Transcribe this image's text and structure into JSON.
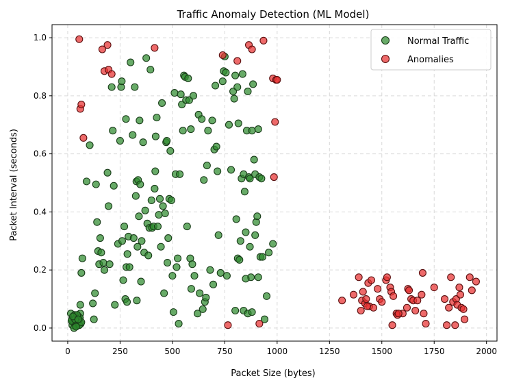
{
  "chart_data": {
    "type": "scatter",
    "title": "Traffic Anomaly Detection (ML Model)",
    "xlabel": "Packet Size (bytes)",
    "ylabel": "Packet Interval (seconds)",
    "xlim": [
      -75,
      2050
    ],
    "ylim": [
      -0.045,
      1.045
    ],
    "x_ticks": [
      0,
      250,
      500,
      750,
      1000,
      1250,
      1500,
      1750,
      2000
    ],
    "y_ticks": [
      0.0,
      0.2,
      0.4,
      0.6,
      0.8,
      1.0
    ],
    "x_tick_labels": [
      "0",
      "250",
      "500",
      "750",
      "1000",
      "1250",
      "1500",
      "1750",
      "2000"
    ],
    "y_tick_labels": [
      "0.0",
      "0.2",
      "0.4",
      "0.6",
      "0.8",
      "1.0"
    ],
    "grid": true,
    "legend_position": "top-right",
    "series": [
      {
        "name": "Normal Traffic",
        "color": "#2e8b2e",
        "edge_color": "#1a3d1a",
        "points": [
          [
            15,
            0.05
          ],
          [
            20,
            0.03
          ],
          [
            25,
            0.02
          ],
          [
            30,
            0.04
          ],
          [
            35,
            0.01
          ],
          [
            40,
            0.03
          ],
          [
            45,
            0.02
          ],
          [
            50,
            0.04
          ],
          [
            55,
            0.03
          ],
          [
            60,
            0.05
          ],
          [
            22,
            0.01
          ],
          [
            28,
            0.035
          ],
          [
            33,
            0.045
          ],
          [
            38,
            0.015
          ],
          [
            42,
            0.025
          ],
          [
            48,
            0.01
          ],
          [
            52,
            0.02
          ],
          [
            58,
            0.035
          ],
          [
            62,
            0.015
          ],
          [
            18,
            0.025
          ],
          [
            30,
            0.0
          ],
          [
            45,
            0.045
          ],
          [
            55,
            0.01
          ],
          [
            35,
            0.03
          ],
          [
            65,
            0.02
          ],
          [
            25,
            0.04
          ],
          [
            40,
            0.005
          ],
          [
            50,
            0.03
          ],
          [
            60,
            0.08
          ],
          [
            65,
            0.19
          ],
          [
            70,
            0.24
          ],
          [
            90,
            0.505
          ],
          [
            105,
            0.63
          ],
          [
            120,
            0.085
          ],
          [
            125,
            0.03
          ],
          [
            130,
            0.12
          ],
          [
            135,
            0.495
          ],
          [
            140,
            0.365
          ],
          [
            145,
            0.265
          ],
          [
            150,
            0.22
          ],
          [
            155,
            0.31
          ],
          [
            160,
            0.26
          ],
          [
            170,
            0.225
          ],
          [
            175,
            0.2
          ],
          [
            190,
            0.535
          ],
          [
            195,
            0.42
          ],
          [
            200,
            0.22
          ],
          [
            210,
            0.83
          ],
          [
            215,
            0.68
          ],
          [
            220,
            0.49
          ],
          [
            225,
            0.08
          ],
          [
            240,
            0.29
          ],
          [
            250,
            0.645
          ],
          [
            255,
            0.83
          ],
          [
            258,
            0.85
          ],
          [
            260,
            0.3
          ],
          [
            265,
            0.165
          ],
          [
            270,
            0.35
          ],
          [
            275,
            0.1
          ],
          [
            278,
            0.72
          ],
          [
            280,
            0.21
          ],
          [
            283,
            0.09
          ],
          [
            285,
            0.255
          ],
          [
            290,
            0.315
          ],
          [
            295,
            0.21
          ],
          [
            300,
            0.915
          ],
          [
            310,
            0.665
          ],
          [
            315,
            0.31
          ],
          [
            320,
            0.83
          ],
          [
            325,
            0.455
          ],
          [
            328,
            0.505
          ],
          [
            330,
            0.095
          ],
          [
            333,
            0.28
          ],
          [
            336,
            0.51
          ],
          [
            340,
            0.385
          ],
          [
            343,
            0.715
          ],
          [
            346,
            0.495
          ],
          [
            350,
            0.16
          ],
          [
            353,
            0.3
          ],
          [
            360,
            0.64
          ],
          [
            365,
            0.26
          ],
          [
            370,
            0.405
          ],
          [
            375,
            0.93
          ],
          [
            380,
            0.36
          ],
          [
            385,
            0.25
          ],
          [
            390,
            0.345
          ],
          [
            395,
            0.89
          ],
          [
            400,
            0.44
          ],
          [
            403,
            0.345
          ],
          [
            410,
            0.35
          ],
          [
            415,
            0.48
          ],
          [
            418,
            0.54
          ],
          [
            420,
            0.66
          ],
          [
            425,
            0.725
          ],
          [
            430,
            0.35
          ],
          [
            435,
            0.39
          ],
          [
            440,
            0.445
          ],
          [
            445,
            0.28
          ],
          [
            450,
            0.775
          ],
          [
            455,
            0.42
          ],
          [
            460,
            0.12
          ],
          [
            465,
            0.395
          ],
          [
            470,
            0.64
          ],
          [
            473,
            0.645
          ],
          [
            476,
            0.225
          ],
          [
            480,
            0.31
          ],
          [
            485,
            0.445
          ],
          [
            490,
            0.61
          ],
          [
            495,
            0.44
          ],
          [
            500,
            0.18
          ],
          [
            505,
            0.055
          ],
          [
            510,
            0.81
          ],
          [
            515,
            0.53
          ],
          [
            520,
            0.21
          ],
          [
            525,
            0.24
          ],
          [
            530,
            0.015
          ],
          [
            535,
            0.53
          ],
          [
            540,
            0.805
          ],
          [
            545,
            0.77
          ],
          [
            550,
            0.68
          ],
          [
            555,
            0.87
          ],
          [
            560,
            0.865
          ],
          [
            565,
            0.785
          ],
          [
            570,
            0.35
          ],
          [
            575,
            0.86
          ],
          [
            580,
            0.785
          ],
          [
            585,
            0.24
          ],
          [
            588,
            0.685
          ],
          [
            590,
            0.135
          ],
          [
            595,
            0.22
          ],
          [
            600,
            0.8
          ],
          [
            605,
            0.18
          ],
          [
            620,
            0.05
          ],
          [
            625,
            0.735
          ],
          [
            630,
            0.12
          ],
          [
            640,
            0.72
          ],
          [
            645,
            0.065
          ],
          [
            650,
            0.51
          ],
          [
            655,
            0.09
          ],
          [
            660,
            0.105
          ],
          [
            665,
            0.56
          ],
          [
            670,
            0.68
          ],
          [
            680,
            0.2
          ],
          [
            690,
            0.715
          ],
          [
            695,
            0.15
          ],
          [
            700,
            0.615
          ],
          [
            705,
            0.835
          ],
          [
            710,
            0.625
          ],
          [
            715,
            0.54
          ],
          [
            720,
            0.32
          ],
          [
            730,
            0.19
          ],
          [
            740,
            0.85
          ],
          [
            745,
            0.885
          ],
          [
            750,
            0.935
          ],
          [
            755,
            0.88
          ],
          [
            760,
            0.18
          ],
          [
            770,
            0.7
          ],
          [
            780,
            0.545
          ],
          [
            790,
            0.815
          ],
          [
            795,
            0.79
          ],
          [
            800,
            0.87
          ],
          [
            805,
            0.375
          ],
          [
            810,
            0.83
          ],
          [
            812,
            0.24
          ],
          [
            815,
            0.705
          ],
          [
            820,
            0.235
          ],
          [
            825,
            0.3
          ],
          [
            830,
            0.515
          ],
          [
            835,
            0.875
          ],
          [
            840,
            0.53
          ],
          [
            845,
            0.47
          ],
          [
            850,
            0.33
          ],
          [
            855,
            0.68
          ],
          [
            860,
            0.815
          ],
          [
            865,
            0.52
          ],
          [
            870,
            0.515
          ],
          [
            875,
            0.175
          ],
          [
            880,
            0.68
          ],
          [
            885,
            0.84
          ],
          [
            890,
            0.58
          ],
          [
            895,
            0.53
          ],
          [
            900,
            0.365
          ],
          [
            905,
            0.385
          ],
          [
            910,
            0.685
          ],
          [
            915,
            0.52
          ],
          [
            920,
            0.245
          ],
          [
            925,
            0.515
          ],
          [
            930,
            0.245
          ],
          [
            940,
            0.03
          ],
          [
            950,
            0.11
          ],
          [
            960,
            0.26
          ],
          [
            980,
            0.29
          ],
          [
            800,
            0.06
          ],
          [
            840,
            0.06
          ],
          [
            850,
            0.17
          ],
          [
            860,
            0.05
          ],
          [
            870,
            0.28
          ],
          [
            880,
            0.055
          ],
          [
            895,
            0.32
          ],
          [
            910,
            0.175
          ]
        ]
      },
      {
        "name": "Anomalies",
        "color": "#e83030",
        "edge_color": "#5a1010",
        "points": [
          [
            55,
            0.995
          ],
          [
            60,
            0.755
          ],
          [
            65,
            0.77
          ],
          [
            75,
            0.655
          ],
          [
            165,
            0.96
          ],
          [
            175,
            0.885
          ],
          [
            190,
            0.975
          ],
          [
            195,
            0.89
          ],
          [
            210,
            0.875
          ],
          [
            415,
            0.965
          ],
          [
            740,
            0.94
          ],
          [
            765,
            0.01
          ],
          [
            810,
            0.92
          ],
          [
            865,
            0.975
          ],
          [
            880,
            0.96
          ],
          [
            915,
            0.015
          ],
          [
            935,
            0.99
          ],
          [
            980,
            0.86
          ],
          [
            985,
            0.52
          ],
          [
            990,
            0.71
          ],
          [
            995,
            0.855
          ],
          [
            1000,
            0.855
          ],
          [
            1310,
            0.095
          ],
          [
            1365,
            0.115
          ],
          [
            1390,
            0.175
          ],
          [
            1400,
            0.06
          ],
          [
            1405,
            0.095
          ],
          [
            1410,
            0.125
          ],
          [
            1420,
            0.085
          ],
          [
            1425,
            0.1
          ],
          [
            1435,
            0.155
          ],
          [
            1440,
            0.075
          ],
          [
            1450,
            0.165
          ],
          [
            1460,
            0.07
          ],
          [
            1480,
            0.135
          ],
          [
            1490,
            0.1
          ],
          [
            1500,
            0.09
          ],
          [
            1520,
            0.165
          ],
          [
            1525,
            0.175
          ],
          [
            1540,
            0.14
          ],
          [
            1545,
            0.125
          ],
          [
            1550,
            0.01
          ],
          [
            1555,
            0.11
          ],
          [
            1570,
            0.05
          ],
          [
            1575,
            0.045
          ],
          [
            1600,
            0.05
          ],
          [
            1620,
            0.07
          ],
          [
            1625,
            0.135
          ],
          [
            1630,
            0.13
          ],
          [
            1640,
            0.1
          ],
          [
            1650,
            0.095
          ],
          [
            1660,
            0.06
          ],
          [
            1670,
            0.095
          ],
          [
            1690,
            0.115
          ],
          [
            1695,
            0.19
          ],
          [
            1700,
            0.05
          ],
          [
            1710,
            0.015
          ],
          [
            1750,
            0.14
          ],
          [
            1800,
            0.1
          ],
          [
            1810,
            0.01
          ],
          [
            1820,
            0.07
          ],
          [
            1830,
            0.175
          ],
          [
            1840,
            0.09
          ],
          [
            1850,
            0.01
          ],
          [
            1855,
            0.1
          ],
          [
            1860,
            0.08
          ],
          [
            1870,
            0.14
          ],
          [
            1875,
            0.115
          ],
          [
            1880,
            0.07
          ],
          [
            1890,
            0.065
          ],
          [
            1895,
            0.03
          ],
          [
            1920,
            0.175
          ],
          [
            1930,
            0.13
          ],
          [
            1950,
            0.16
          ],
          [
            1430,
            0.075
          ],
          [
            1580,
            0.05
          ]
        ]
      }
    ]
  }
}
